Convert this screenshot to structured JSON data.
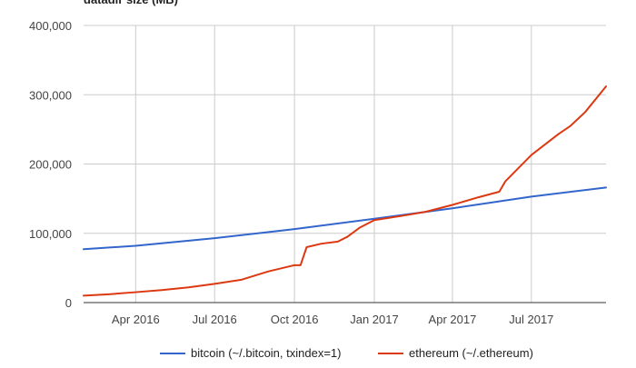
{
  "chart_data": {
    "type": "line",
    "title": "datadir size (MB)",
    "xlabel": "",
    "ylabel": "",
    "x_range": [
      "2016-02-01",
      "2017-09-25"
    ],
    "ylim": [
      0,
      400000
    ],
    "y_ticks": [
      0,
      100000,
      200000,
      300000,
      400000
    ],
    "y_tick_labels": [
      "0",
      "100,000",
      "200,000",
      "300,000",
      "400,000"
    ],
    "x_ticks": [
      "2016-04-01",
      "2016-07-01",
      "2016-10-01",
      "2017-01-01",
      "2017-04-01",
      "2017-07-01"
    ],
    "x_tick_labels": [
      "Apr 2016",
      "Jul 2016",
      "Oct 2016",
      "Jan 2017",
      "Apr 2017",
      "Jul 2017"
    ],
    "grid": true,
    "legend_position": "bottom",
    "series": [
      {
        "name": "bitcoin (~/.bitcoin, txindex=1)",
        "color": "#3366cc",
        "points": [
          [
            "2016-02-01",
            77000
          ],
          [
            "2016-04-01",
            82000
          ],
          [
            "2016-07-01",
            93000
          ],
          [
            "2016-10-01",
            106000
          ],
          [
            "2017-01-01",
            121000
          ],
          [
            "2017-04-01",
            136000
          ],
          [
            "2017-07-01",
            153000
          ],
          [
            "2017-09-25",
            166000
          ]
        ]
      },
      {
        "name": "ethereum (~/.ethereum)",
        "color": "#dc3912",
        "points": [
          [
            "2016-02-01",
            10000
          ],
          [
            "2016-03-01",
            12000
          ],
          [
            "2016-04-01",
            15000
          ],
          [
            "2016-05-01",
            18000
          ],
          [
            "2016-06-01",
            22000
          ],
          [
            "2016-07-01",
            27000
          ],
          [
            "2016-08-01",
            33000
          ],
          [
            "2016-09-01",
            45000
          ],
          [
            "2016-10-01",
            54000
          ],
          [
            "2016-10-08",
            54000
          ],
          [
            "2016-10-15",
            80000
          ],
          [
            "2016-11-01",
            85000
          ],
          [
            "2016-11-20",
            88000
          ],
          [
            "2016-12-01",
            95000
          ],
          [
            "2016-12-15",
            108000
          ],
          [
            "2017-01-01",
            119000
          ],
          [
            "2017-02-01",
            125000
          ],
          [
            "2017-03-01",
            131000
          ],
          [
            "2017-04-01",
            141000
          ],
          [
            "2017-05-01",
            152000
          ],
          [
            "2017-05-25",
            160000
          ],
          [
            "2017-06-01",
            175000
          ],
          [
            "2017-07-01",
            213000
          ],
          [
            "2017-08-01",
            243000
          ],
          [
            "2017-08-15",
            255000
          ],
          [
            "2017-09-01",
            275000
          ],
          [
            "2017-09-25",
            312000
          ]
        ]
      }
    ]
  }
}
